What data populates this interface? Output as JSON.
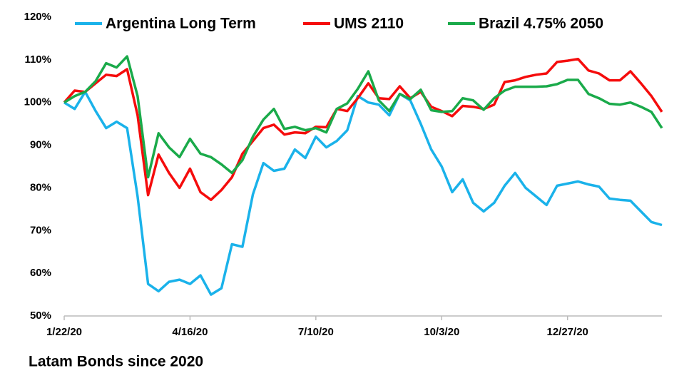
{
  "chart_data": {
    "type": "line",
    "title": "Latam Bonds since 2020",
    "categories": [
      "1/22/20",
      null,
      null,
      null,
      null,
      null,
      null,
      null,
      null,
      null,
      null,
      null,
      "4/16/20",
      null,
      null,
      null,
      null,
      null,
      null,
      null,
      null,
      null,
      null,
      null,
      "7/10/20",
      null,
      null,
      null,
      null,
      null,
      null,
      null,
      null,
      null,
      null,
      null,
      "10/3/20",
      null,
      null,
      null,
      null,
      null,
      null,
      null,
      null,
      null,
      null,
      null,
      "12/27/20",
      null,
      null,
      null,
      null,
      null,
      null,
      null,
      null,
      null
    ],
    "series": [
      {
        "name": "Argentina Long Term",
        "color": "#1ab2ea",
        "values": [
          100,
          98.5,
          102.5,
          98,
          94,
          95.5,
          94,
          78,
          57.5,
          55.8,
          58,
          58.5,
          57.5,
          59.5,
          55,
          56.5,
          66.8,
          66.2,
          78.5,
          85.8,
          84,
          84.5,
          89,
          87,
          92,
          89.5,
          91,
          93.5,
          101.5,
          100,
          99.5,
          97,
          102,
          100.5,
          95,
          89,
          85,
          79,
          82,
          76.5,
          74.5,
          76.5,
          80.5,
          83.5,
          80,
          78,
          76,
          80.5,
          81,
          81.5,
          80.8,
          80.3,
          77.5,
          77.2,
          77,
          74.5,
          72,
          71.3
        ]
      },
      {
        "name": "UMS 2110",
        "color": "#f50c0c",
        "values": [
          100,
          102.8,
          102.5,
          104.5,
          106.5,
          106.2,
          107.8,
          97,
          78.3,
          87.8,
          83.5,
          80,
          84.5,
          79,
          77.2,
          79.5,
          82.5,
          88,
          91,
          94,
          94.8,
          92.5,
          93,
          92.8,
          94.3,
          94.2,
          98.5,
          98,
          101,
          104.5,
          101,
          100.8,
          103.8,
          101,
          102.5,
          99,
          98,
          96.8,
          99.2,
          99,
          98.5,
          99.5,
          104.8,
          105.2,
          106,
          106.5,
          106.8,
          109.5,
          109.8,
          110.2,
          107.5,
          106.8,
          105.2,
          105.2,
          107.3,
          104.5,
          101.5,
          97.8
        ]
      },
      {
        "name": "Brazil 4.75% 2050",
        "color": "#1aaa4a",
        "values": [
          100,
          101.5,
          102.5,
          105,
          109.2,
          108.2,
          110.8,
          101.5,
          82.5,
          92.8,
          89.5,
          87.2,
          91.5,
          88,
          87.2,
          85.5,
          83.5,
          86.5,
          92,
          96,
          98.5,
          93.8,
          94.3,
          93.5,
          94,
          93,
          98.5,
          99.8,
          103.2,
          107.3,
          100.5,
          98,
          102,
          100.8,
          103,
          98.2,
          97.8,
          98,
          101,
          100.5,
          98.3,
          101,
          102.8,
          103.7,
          103.7,
          103.7,
          103.8,
          104.3,
          105.3,
          105.3,
          102,
          101,
          99.7,
          99.5,
          100,
          99,
          97.8,
          94
        ]
      }
    ],
    "ylim": [
      50,
      120
    ],
    "yticks": [
      {
        "value": 50,
        "label": "50%"
      },
      {
        "value": 60,
        "label": "60%"
      },
      {
        "value": 70,
        "label": "70%"
      },
      {
        "value": 80,
        "label": "80%"
      },
      {
        "value": 90,
        "label": "90%"
      },
      {
        "value": 100,
        "label": "100%"
      },
      {
        "value": 110,
        "label": "110%"
      },
      {
        "value": 120,
        "label": "120%"
      }
    ],
    "legend": "top"
  }
}
